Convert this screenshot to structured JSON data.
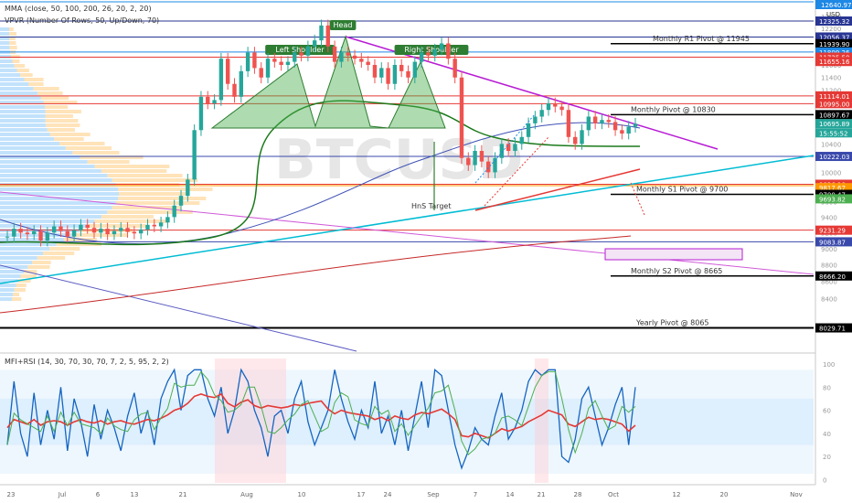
{
  "legend": {
    "line1": "MMA (close, 50, 100, 200, 26, 20, 2, 20)",
    "line2": "VPVR (Number Of Rows, 50, Up/Down, 70)"
  },
  "indicator_legend": "MFI+RSI (14, 30, 70, 30, 70, 7, 2, 5, 95, 2, 2)",
  "watermark": {
    "symbol": "BTCUSD"
  },
  "annotations": {
    "head": "Head",
    "left_shoulder": "Left Shoulder",
    "right_shoulder": "Right Shoulder",
    "hns_target": "HnS Target",
    "monthly_r1": "Monthly R1 Pivot @ 11945",
    "monthly_pivot": "Monthly Pivot @ 10830",
    "monthly_s1": "Monthly S1 Pivot @ 9700",
    "monthly_s2": "Monthly S2 Pivot @ 8665",
    "yearly_pivot": "Yearly Pivot @ 8065"
  },
  "colors": {
    "price_up": "#26a69a",
    "price_down": "#ef5350",
    "ma50": "#1b7a1b",
    "ma100": "#2e7d32",
    "ma200": "#c62828",
    "blue_ma": "#3f51b5",
    "cyan_trend": "#00bcd4",
    "magenta_trend": "#b71cd4",
    "hns_fill": "#4caf50",
    "mfi": "#1565c0",
    "rsi": "#e53935"
  },
  "chart_data": [
    {
      "type": "line",
      "title": "BTCUSD",
      "x_ticks": [
        "23",
        "Jul",
        "6",
        "13",
        "21",
        "Aug",
        "10",
        "17",
        "24",
        "Sep",
        "7",
        "14",
        "21",
        "28",
        "Oct",
        "12",
        "20",
        "Nov"
      ],
      "y_axis_ticks": [
        8400,
        8600,
        8800,
        9000,
        9200,
        9400,
        9600,
        9800,
        10000,
        10200,
        10400,
        10600,
        10800,
        11000,
        11200,
        11400,
        11600,
        11800,
        12000,
        12200,
        12400
      ],
      "y_scale": "log",
      "price_labels": [
        {
          "value": "12325.32",
          "color": "#283593"
        },
        {
          "value": "12056.37",
          "color": "#283593"
        },
        {
          "value": "11939.90",
          "color": "#000000"
        },
        {
          "value": "11809.26",
          "color": "#1e88e5"
        },
        {
          "value": "11725.50",
          "color": "#e53935"
        },
        {
          "value": "11655.16",
          "color": "#e53935"
        },
        {
          "value": "11114.01",
          "color": "#e53935"
        },
        {
          "value": "10995.00",
          "color": "#e53935"
        },
        {
          "value": "10897.67",
          "color": "#000000"
        },
        {
          "value": "10695.89",
          "color": "#26a69a"
        },
        {
          "value": "15:55:52",
          "color": "#26a69a"
        },
        {
          "value": "10222.03",
          "color": "#3949ab"
        },
        {
          "value": "9836.10",
          "color": "#e53935"
        },
        {
          "value": "9817.67",
          "color": "#ff9800"
        },
        {
          "value": "9700.47",
          "color": "#000000"
        },
        {
          "value": "9693.82",
          "color": "#4caf50"
        },
        {
          "value": "9231.29",
          "color": "#e53935"
        },
        {
          "value": "9083.87",
          "color": "#3949ab"
        },
        {
          "value": "8666.20",
          "color": "#000000"
        },
        {
          "value": "8029.71",
          "color": "#000000"
        }
      ],
      "top_price_label": "12640.97",
      "currency": "USD",
      "series": [
        {
          "name": "BTCUSD",
          "close": [
            9150,
            9250,
            9200,
            9180,
            9220,
            9100,
            9200,
            9280,
            9220,
            9150,
            9230,
            9300,
            9260,
            9200,
            9250,
            9180,
            9220,
            9260,
            9210,
            9190,
            9240,
            9300,
            9280,
            9330,
            9400,
            9550,
            9680,
            9900,
            10600,
            11100,
            11000,
            11050,
            11700,
            11300,
            11100,
            11500,
            11800,
            11550,
            11400,
            11700,
            11650,
            11600,
            11650,
            11800,
            11750,
            11900,
            12000,
            12250,
            11900,
            11650,
            11800,
            11750,
            11700,
            11650,
            11600,
            11400,
            11550,
            11300,
            11600,
            11500,
            11400,
            11650,
            11800,
            11750,
            11850,
            11950,
            11700,
            11400,
            10200,
            10100,
            10300,
            10150,
            10000,
            10200,
            10400,
            10300,
            10400,
            10500,
            10700,
            10800,
            10900,
            11000,
            10950,
            10900,
            10500,
            10400,
            10600,
            10800,
            10700,
            10750,
            10720,
            10600,
            10550,
            10650,
            10695
          ]
        }
      ]
    },
    {
      "type": "line",
      "title": "MFI+RSI",
      "y_axis_ticks": [
        0,
        20,
        40,
        60,
        80,
        100
      ],
      "ylim": [
        0,
        100
      ],
      "bands": [
        30,
        70
      ],
      "series": [
        {
          "name": "MFI",
          "values": [
            30,
            85,
            40,
            20,
            75,
            30,
            60,
            35,
            80,
            25,
            70,
            50,
            20,
            65,
            35,
            60,
            45,
            25,
            55,
            75,
            40,
            60,
            30,
            70,
            85,
            95,
            60,
            90,
            95,
            95,
            70,
            55,
            80,
            40,
            60,
            95,
            85,
            60,
            45,
            20,
            55,
            60,
            40,
            70,
            85,
            50,
            30,
            45,
            60,
            95,
            70,
            50,
            35,
            60,
            45,
            85,
            40,
            55,
            30,
            60,
            25,
            55,
            85,
            45,
            95,
            90,
            60,
            30,
            10,
            25,
            45,
            35,
            30,
            55,
            75,
            35,
            45,
            60,
            85,
            95,
            90,
            95,
            95,
            20,
            15,
            35,
            70,
            80,
            55,
            30,
            45,
            65,
            80,
            30,
            80
          ]
        },
        {
          "name": "RSI",
          "values": [
            45,
            52,
            50,
            48,
            52,
            47,
            50,
            51,
            50,
            47,
            50,
            52,
            50,
            49,
            51,
            48,
            50,
            51,
            49,
            48,
            50,
            52,
            51,
            53,
            56,
            60,
            62,
            66,
            72,
            74,
            72,
            71,
            74,
            66,
            63,
            67,
            69,
            64,
            62,
            64,
            63,
            62,
            63,
            65,
            64,
            66,
            67,
            68,
            61,
            57,
            60,
            58,
            57,
            56,
            55,
            52,
            54,
            51,
            55,
            53,
            52,
            56,
            58,
            57,
            59,
            61,
            57,
            52,
            38,
            37,
            40,
            38,
            36,
            40,
            44,
            42,
            44,
            46,
            50,
            53,
            56,
            60,
            58,
            56,
            48,
            46,
            50,
            54,
            52,
            53,
            52,
            50,
            48,
            42,
            47
          ]
        }
      ]
    }
  ]
}
